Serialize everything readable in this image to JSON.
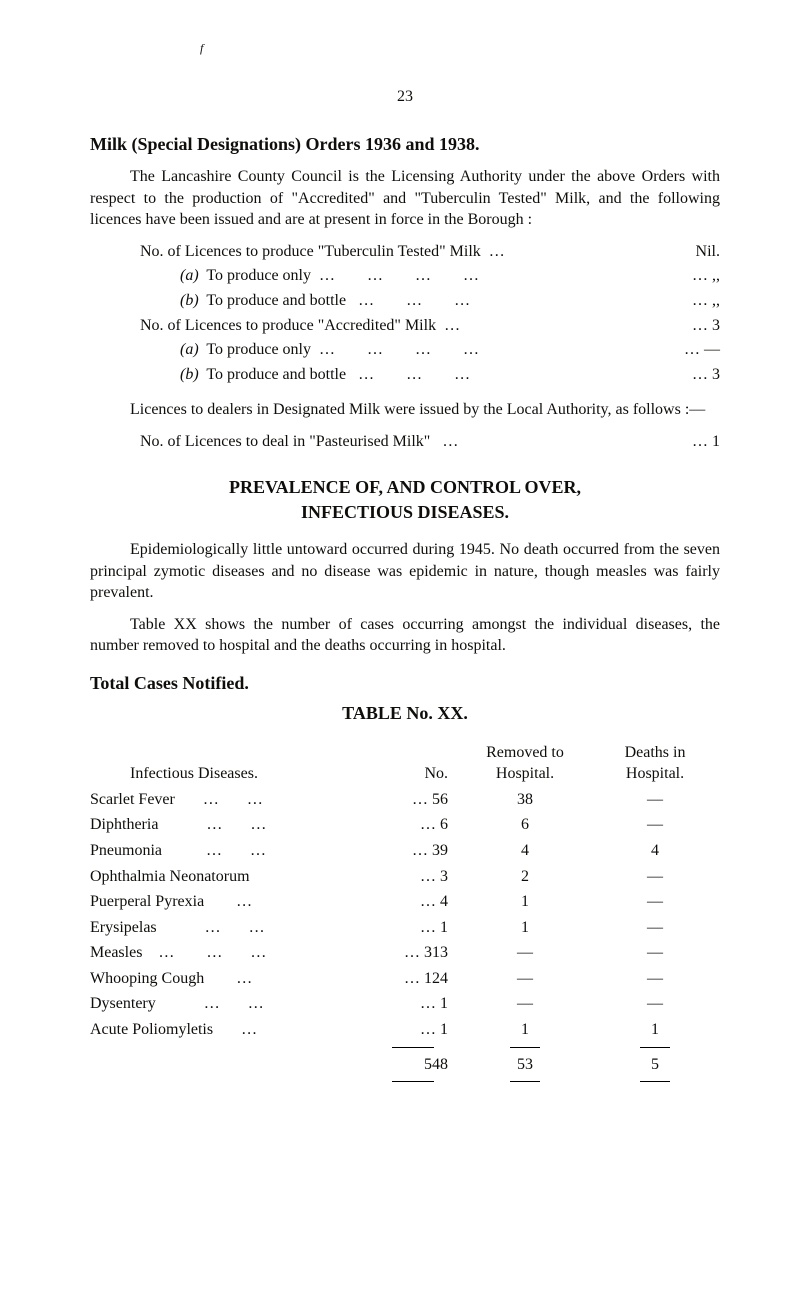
{
  "page_number": "23",
  "top_mark": "f",
  "milk": {
    "heading": "Milk (Special Designations) Orders 1936 and 1938.",
    "para1_a": "The Lancashire County Council is the Licensing Authority under the above Orders with respect to the production of \"Accredited\" and \"Tuberculin Tested\" Milk, and the following licences have been issued and are at present in force in the Borough :",
    "lines": [
      {
        "indent": 1,
        "label": "No. of Licences to produce \"Tuberculin Tested\" Milk  …",
        "value": "Nil."
      },
      {
        "indent": 2,
        "label": "(a)  To produce only  …        …        …        …",
        "value": "…   ,,",
        "italic_a": true
      },
      {
        "indent": 2,
        "label": "(b)  To produce and bottle   …        …        …",
        "value": "…   ,,",
        "italic_a": true
      },
      {
        "indent": 1,
        "label": "No. of Licences to produce \"Accredited\" Milk  …",
        "value": "…   3"
      },
      {
        "indent": 2,
        "label": "(a)  To produce only  …        …        …        …",
        "value": "…   —",
        "italic_a": true
      },
      {
        "indent": 2,
        "label": "(b)  To produce and bottle   …        …        …",
        "value": "…   3",
        "italic_a": true
      }
    ],
    "para2": "Licences to dealers in Designated Milk were issued by the Local Authority, as follows :—",
    "line_past": {
      "indent": 1,
      "label": "No. of Licences to deal in \"Pasteurised Milk\"   …",
      "value": "…   1"
    }
  },
  "prev": {
    "heading_l1": "PREVALENCE OF, AND CONTROL OVER,",
    "heading_l2": "INFECTIOUS DISEASES.",
    "para1": "Epidemiologically little untoward occurred during 1945.  No death occurred from the seven principal zymotic diseases and no disease was epidemic in nature, though measles was fairly prevalent.",
    "para2": "Table XX shows the number of cases occurring amongst the individual diseases, the number removed to hospital and the deaths occurring in hospital."
  },
  "table": {
    "total_heading": "Total Cases Notified.",
    "title": "TABLE No. XX.",
    "head": {
      "c1": "Infectious Diseases.",
      "c2": "No.",
      "c3a": "Removed to",
      "c3b": "Hospital.",
      "c4a": "Deaths in",
      "c4b": "Hospital."
    },
    "rows": [
      {
        "name": "Scarlet Fever       …       …",
        "dots": "…",
        "no": "56",
        "rem": "38",
        "dead": "—"
      },
      {
        "name": "Diphtheria            …       …",
        "dots": "…",
        "no": "6",
        "rem": "6",
        "dead": "—"
      },
      {
        "name": "Pneumonia           …       …",
        "dots": "…",
        "no": "39",
        "rem": "4",
        "dead": "4"
      },
      {
        "name": "Ophthalmia Neonatorum",
        "dots": "…",
        "no": "3",
        "rem": "2",
        "dead": "—"
      },
      {
        "name": "Puerperal Pyrexia        …",
        "dots": "…",
        "no": "4",
        "rem": "1",
        "dead": "—"
      },
      {
        "name": "Erysipelas            …       …",
        "dots": "…",
        "no": "1",
        "rem": "1",
        "dead": "—"
      },
      {
        "name": "Measles    …        …       …",
        "dots": "…",
        "no": "313",
        "rem": "—",
        "dead": "—"
      },
      {
        "name": "Whooping Cough        …",
        "dots": "…",
        "no": "124",
        "rem": "—",
        "dead": "—"
      },
      {
        "name": "Dysentery            …       …",
        "dots": "…",
        "no": "1",
        "rem": "—",
        "dead": "—"
      },
      {
        "name": "Acute Poliomyletis       …",
        "dots": "…",
        "no": "1",
        "rem": "1",
        "dead": "1"
      }
    ],
    "totals": {
      "no": "548",
      "rem": "53",
      "dead": "5"
    }
  },
  "colors": {
    "text": "#0f0e0b",
    "background": "#ffffff",
    "rule": "#000000"
  }
}
